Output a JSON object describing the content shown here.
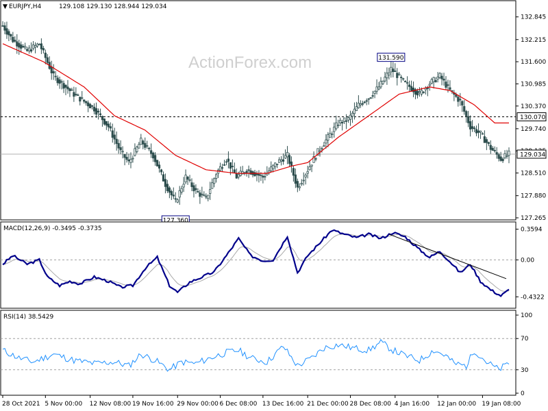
{
  "chart_data": {
    "type": "candlestick",
    "symbol_label": "EURJPY,H4",
    "ohlc_label": "129.108 129.130 128.944 129.034",
    "watermark": "ActionForex.com",
    "price_panel": {
      "ylim": [
        127.265,
        133.2
      ],
      "y_ticks": [
        "132.845",
        "132.215",
        "131.600",
        "130.985",
        "130.370",
        "129.740",
        "129.125",
        "128.510",
        "127.880",
        "127.265"
      ],
      "y_tick_values": [
        132.845,
        132.215,
        131.6,
        130.985,
        130.37,
        129.74,
        129.125,
        128.51,
        127.88,
        127.265
      ],
      "current_price": 129.034,
      "current_price_label": "129.034",
      "level_line": 130.07,
      "level_line_label": "130.070",
      "annotations": [
        {
          "label": "131.590",
          "bar": 191,
          "value": 131.59
        },
        {
          "label": "127.360",
          "bar": 85,
          "value": 127.36
        }
      ],
      "bars": 250,
      "anchors": [
        [
          0,
          132.6
        ],
        [
          5,
          132.2
        ],
        [
          12,
          131.9
        ],
        [
          18,
          132.1
        ],
        [
          25,
          131.2
        ],
        [
          35,
          130.7
        ],
        [
          45,
          130.3
        ],
        [
          52,
          129.8
        ],
        [
          58,
          129.1
        ],
        [
          62,
          128.8
        ],
        [
          68,
          129.4
        ],
        [
          74,
          129.0
        ],
        [
          80,
          128.2
        ],
        [
          85,
          127.7
        ],
        [
          90,
          128.4
        ],
        [
          95,
          128.0
        ],
        [
          100,
          127.8
        ],
        [
          105,
          128.5
        ],
        [
          110,
          128.9
        ],
        [
          115,
          128.4
        ],
        [
          120,
          128.6
        ],
        [
          128,
          128.4
        ],
        [
          135,
          128.8
        ],
        [
          140,
          129.0
        ],
        [
          145,
          128.1
        ],
        [
          150,
          128.6
        ],
        [
          155,
          129.1
        ],
        [
          160,
          129.5
        ],
        [
          165,
          129.9
        ],
        [
          170,
          130.0
        ],
        [
          175,
          130.4
        ],
        [
          180,
          130.6
        ],
        [
          185,
          130.9
        ],
        [
          191,
          131.4
        ],
        [
          198,
          131.0
        ],
        [
          205,
          130.7
        ],
        [
          210,
          131.0
        ],
        [
          215,
          131.2
        ],
        [
          220,
          130.8
        ],
        [
          225,
          130.5
        ],
        [
          230,
          129.8
        ],
        [
          235,
          129.6
        ],
        [
          240,
          129.2
        ],
        [
          245,
          128.9
        ],
        [
          249,
          129.03
        ]
      ],
      "ma_anchors": [
        [
          0,
          132.1
        ],
        [
          20,
          131.6
        ],
        [
          40,
          130.9
        ],
        [
          55,
          130.1
        ],
        [
          70,
          129.7
        ],
        [
          85,
          129.0
        ],
        [
          100,
          128.6
        ],
        [
          115,
          128.5
        ],
        [
          130,
          128.5
        ],
        [
          142,
          128.7
        ],
        [
          150,
          128.8
        ],
        [
          165,
          129.5
        ],
        [
          180,
          130.1
        ],
        [
          195,
          130.7
        ],
        [
          210,
          130.9
        ],
        [
          220,
          130.8
        ],
        [
          232,
          130.4
        ],
        [
          242,
          129.9
        ]
      ]
    },
    "macd_panel": {
      "label": "MACD(12,26,9) -0.3495 -0.3735",
      "ylim": [
        -0.55,
        0.42
      ],
      "y_ticks": [
        "0.3594",
        "0.00",
        "-0.4322"
      ],
      "y_tick_values": [
        0.3594,
        0.0,
        -0.4322
      ],
      "zero_label": "0.00",
      "anchors": [
        [
          0,
          -0.05
        ],
        [
          5,
          0.05
        ],
        [
          12,
          -0.05
        ],
        [
          18,
          0.0
        ],
        [
          22,
          -0.2
        ],
        [
          28,
          -0.3
        ],
        [
          33,
          -0.25
        ],
        [
          38,
          -0.28
        ],
        [
          45,
          -0.2
        ],
        [
          52,
          -0.25
        ],
        [
          58,
          -0.32
        ],
        [
          64,
          -0.3
        ],
        [
          70,
          -0.1
        ],
        [
          76,
          0.03
        ],
        [
          82,
          -0.3
        ],
        [
          86,
          -0.38
        ],
        [
          92,
          -0.26
        ],
        [
          98,
          -0.2
        ],
        [
          104,
          -0.14
        ],
        [
          110,
          0.05
        ],
        [
          116,
          0.25
        ],
        [
          122,
          0.05
        ],
        [
          128,
          -0.01
        ],
        [
          133,
          -0.0
        ],
        [
          140,
          0.28
        ],
        [
          145,
          -0.15
        ],
        [
          150,
          0.05
        ],
        [
          156,
          0.2
        ],
        [
          162,
          0.35
        ],
        [
          168,
          0.3
        ],
        [
          174,
          0.26
        ],
        [
          180,
          0.3
        ],
        [
          186,
          0.25
        ],
        [
          192,
          0.32
        ],
        [
          198,
          0.27
        ],
        [
          205,
          0.12
        ],
        [
          210,
          0.03
        ],
        [
          215,
          0.1
        ],
        [
          220,
          -0.02
        ],
        [
          225,
          -0.15
        ],
        [
          230,
          -0.05
        ],
        [
          235,
          -0.25
        ],
        [
          240,
          -0.35
        ],
        [
          245,
          -0.42
        ],
        [
          249,
          -0.35
        ]
      ],
      "trendline": {
        "x1": 190,
        "y1": 0.3,
        "x2": 249,
        "y2": -0.22
      }
    },
    "rsi_panel": {
      "label": "RSI(14) 38.5429",
      "ylim": [
        0,
        100
      ],
      "y_ticks": [
        "100",
        "70",
        "30",
        "0"
      ],
      "y_tick_values": [
        100,
        70,
        30,
        0
      ],
      "levels": [
        70,
        30
      ],
      "anchors": [
        [
          0,
          55
        ],
        [
          8,
          45
        ],
        [
          15,
          40
        ],
        [
          25,
          50
        ],
        [
          35,
          42
        ],
        [
          45,
          38
        ],
        [
          55,
          40
        ],
        [
          62,
          35
        ],
        [
          68,
          50
        ],
        [
          75,
          42
        ],
        [
          82,
          30
        ],
        [
          88,
          40
        ],
        [
          95,
          38
        ],
        [
          102,
          45
        ],
        [
          110,
          52
        ],
        [
          116,
          55
        ],
        [
          122,
          45
        ],
        [
          130,
          40
        ],
        [
          138,
          60
        ],
        [
          145,
          35
        ],
        [
          152,
          45
        ],
        [
          158,
          58
        ],
        [
          165,
          62
        ],
        [
          172,
          58
        ],
        [
          180,
          55
        ],
        [
          186,
          65
        ],
        [
          192,
          55
        ],
        [
          198,
          48
        ],
        [
          205,
          42
        ],
        [
          212,
          55
        ],
        [
          218,
          48
        ],
        [
          222,
          38
        ],
        [
          228,
          35
        ],
        [
          232,
          55
        ],
        [
          238,
          40
        ],
        [
          244,
          30
        ],
        [
          249,
          38.5
        ]
      ]
    },
    "x_ticks": [
      {
        "bar": 0,
        "label": "28 Oct 2021"
      },
      {
        "bar": 21,
        "label": "5 Nov 00:00"
      },
      {
        "bar": 43,
        "label": "12 Nov 08:00"
      },
      {
        "bar": 64,
        "label": "19 Nov 16:00"
      },
      {
        "bar": 86,
        "label": "29 Nov 00:00"
      },
      {
        "bar": 107,
        "label": "6 Dec 08:00"
      },
      {
        "bar": 128,
        "label": "13 Dec 16:00"
      },
      {
        "bar": 150,
        "label": "21 Dec 00:00"
      },
      {
        "bar": 171,
        "label": "28 Dec 08:00"
      },
      {
        "bar": 193,
        "label": "4 Jan 16:00"
      },
      {
        "bar": 214,
        "label": "12 Jan 00:00"
      },
      {
        "bar": 236,
        "label": "19 Jan 08:00"
      }
    ],
    "colors": {
      "candle": "#2f4f4f",
      "ma": "#e00000",
      "macd": "#00008b",
      "signal": "#a9a9a9",
      "rsi": "#1e90ff",
      "grid": "#808080"
    }
  }
}
